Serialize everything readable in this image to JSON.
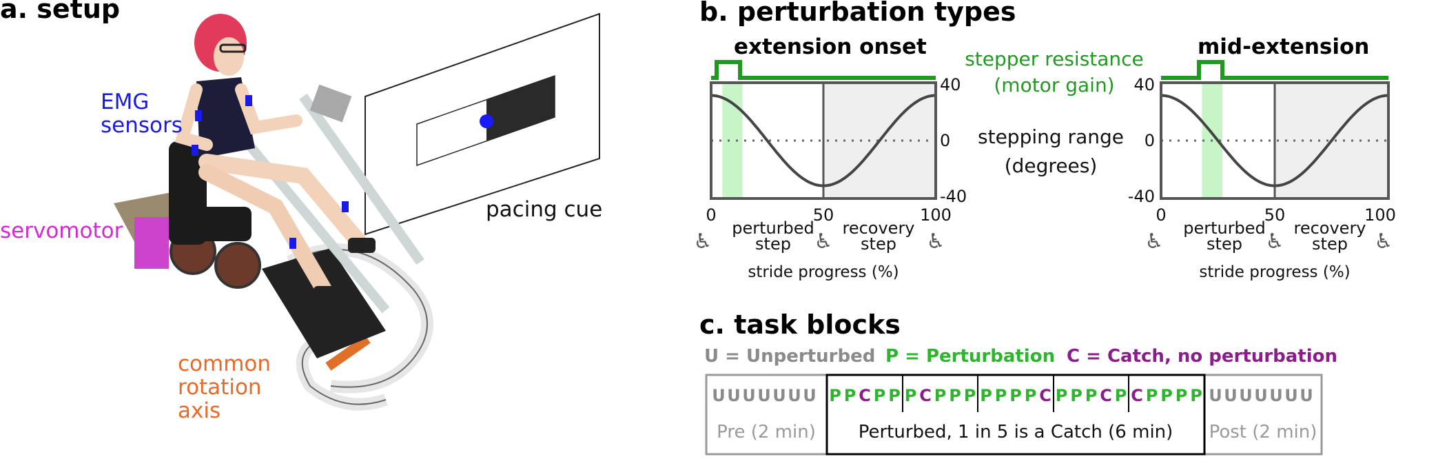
{
  "setup": {
    "heading": "a. setup",
    "emg_label": [
      "EMG",
      "sensors"
    ],
    "servo_label": "servomotor",
    "axis_label": [
      "common",
      "rotation",
      "axis"
    ],
    "pacing_label": "pacing cue",
    "colors": {
      "emg": "#1a1ae6",
      "servo": "#d42ad4",
      "axis": "#e86a2a",
      "cue_dot": "#1a1aff"
    }
  },
  "perturbation": {
    "heading": "b. perturbation types",
    "plot_left": {
      "title": "extension onset",
      "y_ticks": [
        "40",
        "0",
        "-40"
      ],
      "x_ticks": [
        "0",
        "50",
        "100"
      ],
      "perturb_window_pct": [
        5,
        14
      ]
    },
    "plot_right": {
      "title": "mid-extension",
      "y_ticks": [
        "40",
        "0",
        "-40"
      ],
      "x_ticks": [
        "0",
        "50",
        "100"
      ],
      "perturb_window_pct": [
        18,
        27
      ]
    },
    "resistance_label": [
      "stepper resistance",
      "(motor gain)"
    ],
    "range_label": [
      "stepping range",
      "(degrees)"
    ],
    "perturbed_step": [
      "perturbed",
      "step"
    ],
    "recovery_step": [
      "recovery",
      "step"
    ],
    "xlabel": "stride progress (%)",
    "colors": {
      "resistance": "#1f9a1f",
      "window": "#c8f5c8",
      "recovery_bg": "#efefef",
      "curve": "#444444"
    }
  },
  "task_blocks": {
    "heading": "c. task blocks",
    "legend": {
      "unperturbed": "U = Unperturbed",
      "perturbation": "P = Perturbation",
      "catch": "C = Catch, no perturbation"
    },
    "pre_letters": [
      "U",
      "U",
      "U",
      "U",
      "U",
      "U",
      "U"
    ],
    "post_letters": [
      "U",
      "U",
      "U",
      "U",
      "U",
      "U",
      "U"
    ],
    "perturbed_groups": [
      [
        "P",
        "P",
        "C",
        "P",
        "P"
      ],
      [
        "P",
        "C",
        "P",
        "P",
        "P"
      ],
      [
        "P",
        "P",
        "P",
        "P",
        "C"
      ],
      [
        "P",
        "P",
        "P",
        "C",
        "P"
      ],
      [
        "C",
        "P",
        "P",
        "P",
        "P"
      ]
    ],
    "pre_label": "Pre (2 min)",
    "perturbed_label": "Perturbed, 1 in 5 is a Catch (6 min)",
    "post_label": "Post (2 min)",
    "colors": {
      "U": "#8a8a8a",
      "P": "#2db52d",
      "C": "#8b1d8b"
    }
  }
}
